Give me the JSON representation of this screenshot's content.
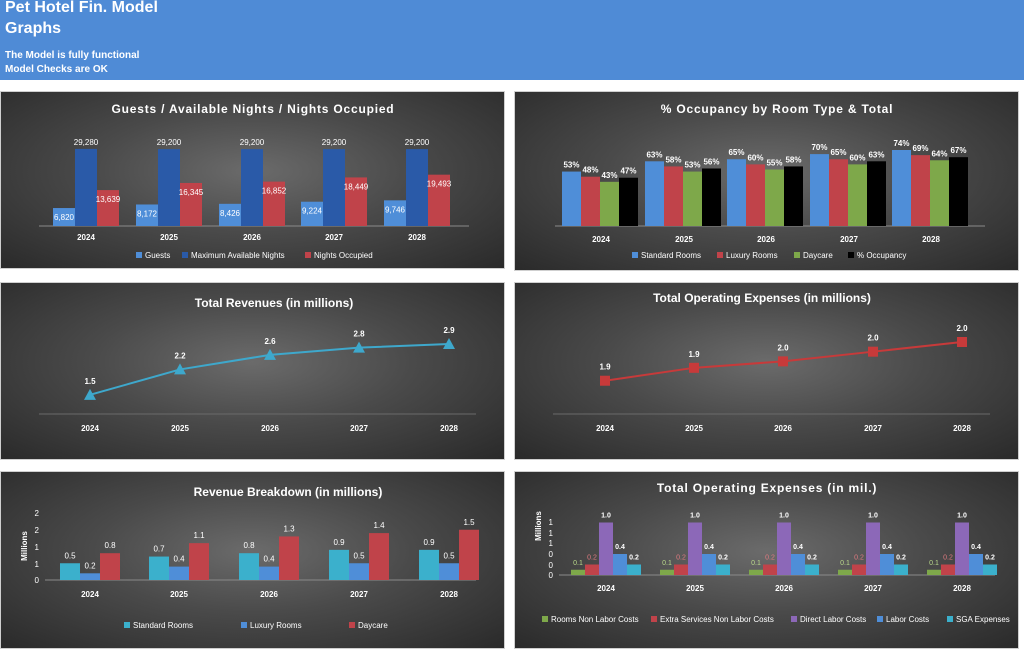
{
  "header": {
    "title_line1": "Pet Hotel Fin. Model",
    "title_line2": "Graphs",
    "status_line1": "The Model is fully functional",
    "status_line2": "Model Checks are OK"
  },
  "colors": {
    "banner": "#4f8bd6",
    "blue_light": "#4f8ed8",
    "blue_dark": "#2a5aa8",
    "red": "#c0434a",
    "green": "#7ea84a",
    "black": "#000000",
    "cyan": "#3bb0cc",
    "purple": "#8c68b8",
    "line_blue": "#3ea8cc",
    "line_red": "#c73a3a"
  },
  "chart_data": [
    {
      "type": "bar",
      "title": "Guests / Available Nights / Nights Occupied",
      "categories": [
        "2024",
        "2025",
        "2026",
        "2027",
        "2028"
      ],
      "labels": [
        "6,820",
        "8,172",
        "8,426",
        "9,224",
        "9,746",
        "29,280",
        "29,200",
        "29,200",
        "29,200",
        "29,200",
        "13,639",
        "16,345",
        "16,852",
        "18,449",
        "19,493"
      ],
      "series": [
        {
          "name": "Guests",
          "values": [
            6820,
            8172,
            8426,
            9224,
            9746
          ]
        },
        {
          "name": "Maximum Available Nights",
          "values": [
            29280,
            29200,
            29200,
            29200,
            29200
          ]
        },
        {
          "name": "Nights Occupied",
          "values": [
            13639,
            16345,
            16852,
            18449,
            19493
          ]
        }
      ],
      "ylim": [
        0,
        30000
      ],
      "legend": "bottom"
    },
    {
      "type": "bar",
      "title": "% Occupancy by Room Type & Total",
      "categories": [
        "2024",
        "2025",
        "2026",
        "2027",
        "2028"
      ],
      "labels": [
        "53%",
        "63%",
        "65%",
        "70%",
        "74%",
        "48%",
        "58%",
        "60%",
        "65%",
        "69%",
        "43%",
        "53%",
        "55%",
        "60%",
        "64%",
        "47%",
        "56%",
        "58%",
        "63%",
        "67%"
      ],
      "series": [
        {
          "name": "Standard Rooms",
          "values": [
            53,
            63,
            65,
            70,
            74
          ]
        },
        {
          "name": "Luxury Rooms",
          "values": [
            48,
            58,
            60,
            65,
            69
          ]
        },
        {
          "name": "Daycare",
          "values": [
            43,
            53,
            55,
            60,
            64
          ]
        },
        {
          "name": "% Occupancy",
          "values": [
            47,
            56,
            58,
            63,
            67
          ]
        }
      ],
      "ylim": [
        0,
        80
      ],
      "legend": "bottom"
    },
    {
      "type": "line",
      "title": "Total Revenues (in millions)",
      "categories": [
        "2024",
        "2025",
        "2026",
        "2027",
        "2028"
      ],
      "labels": [
        "1.5",
        "2.2",
        "2.6",
        "2.8",
        "2.9"
      ],
      "series": [
        {
          "values": [
            1.5,
            2.2,
            2.6,
            2.8,
            2.9
          ]
        }
      ],
      "ylim": [
        1.0,
        3.1
      ]
    },
    {
      "type": "line",
      "title": "Total Operating Expenses (in millions)",
      "categories": [
        "2024",
        "2025",
        "2026",
        "2027",
        "2028"
      ],
      "labels": [
        "1.9",
        "1.9",
        "2.0",
        "2.0",
        "2.0"
      ],
      "series": [
        {
          "values": [
            1.9,
            1.94,
            1.96,
            1.99,
            2.02
          ]
        }
      ],
      "ylim": [
        1.8,
        2.05
      ]
    },
    {
      "type": "bar",
      "title": "Revenue Breakdown (in millions)",
      "ylabel": "Millions",
      "yticks": [
        "0",
        "1",
        "1",
        "2",
        "2"
      ],
      "categories": [
        "2024",
        "2025",
        "2026",
        "2027",
        "2028"
      ],
      "labels": [
        "0.5",
        "0.7",
        "0.8",
        "0.9",
        "0.9",
        "0.2",
        "0.4",
        "0.4",
        "0.5",
        "0.5",
        "0.8",
        "1.1",
        "1.3",
        "1.4",
        "1.5"
      ],
      "series": [
        {
          "name": "Standard Rooms",
          "values": [
            0.5,
            0.7,
            0.8,
            0.9,
            0.9
          ]
        },
        {
          "name": "Luxury Rooms",
          "values": [
            0.2,
            0.4,
            0.4,
            0.5,
            0.5
          ]
        },
        {
          "name": "Daycare",
          "values": [
            0.8,
            1.1,
            1.3,
            1.4,
            1.5
          ]
        }
      ],
      "ylim": [
        0,
        2
      ],
      "legend": "bottom"
    },
    {
      "type": "bar",
      "title": "Total Operating Expenses (in mil.)",
      "ylabel": "Millions",
      "yticks": [
        "0",
        "0",
        "0",
        "1",
        "1",
        "1"
      ],
      "categories": [
        "2024",
        "2025",
        "2026",
        "2027",
        "2028"
      ],
      "labels": [
        "0.1",
        "0.2",
        "1.0",
        "0.4",
        "0.2"
      ],
      "series": [
        {
          "name": "Rooms Non Labor Costs",
          "values": [
            0.1,
            0.1,
            0.1,
            0.1,
            0.1
          ]
        },
        {
          "name": "Extra Services Non Labor Costs",
          "values": [
            0.2,
            0.2,
            0.2,
            0.2,
            0.2
          ]
        },
        {
          "name": "Direct Labor Costs",
          "values": [
            1.0,
            1.0,
            1.0,
            1.0,
            1.0
          ]
        },
        {
          "name": "Labor Costs",
          "values": [
            0.4,
            0.4,
            0.4,
            0.4,
            0.4
          ]
        },
        {
          "name": "SGA Expenses",
          "values": [
            0.2,
            0.2,
            0.2,
            0.2,
            0.2
          ]
        }
      ],
      "ylim": [
        0,
        1.2
      ],
      "legend": "bottom"
    }
  ]
}
